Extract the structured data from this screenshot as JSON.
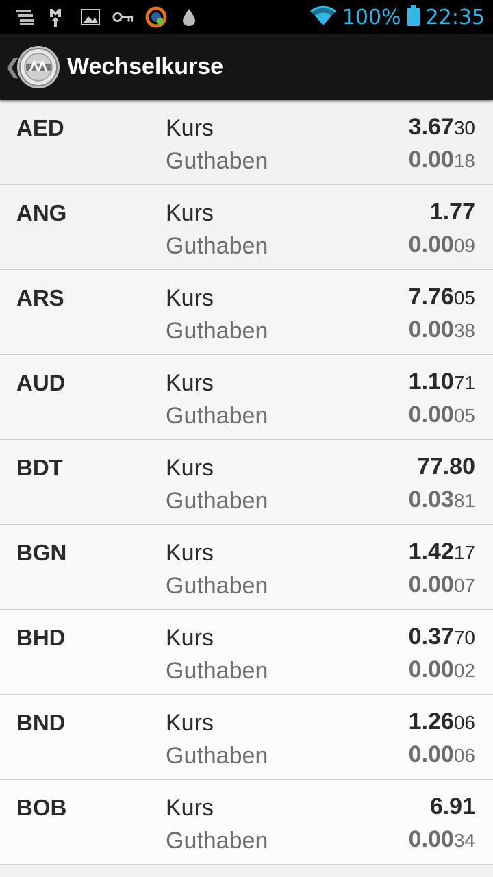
{
  "status_bar": {
    "battery": "100%",
    "time": "22:35",
    "accent_color": "#33b5e5",
    "icons": [
      "notification-stack-icon",
      "gmail-icon",
      "image-icon",
      "key-icon",
      "avast-icon",
      "drop-icon",
      "wifi-icon",
      "battery-icon"
    ]
  },
  "action_bar": {
    "title": "Wechselkurse",
    "logo": "app-logo"
  },
  "rates": [
    {
      "code": "AED",
      "kurs_label": "Kurs",
      "guthaben_label": "Guthaben",
      "kurs_main": "3.67",
      "kurs_small": "30",
      "guthaben_main": "0.00",
      "guthaben_small": "18"
    },
    {
      "code": "ANG",
      "kurs_label": "Kurs",
      "guthaben_label": "Guthaben",
      "kurs_main": "1.77",
      "kurs_small": "",
      "guthaben_main": "0.00",
      "guthaben_small": "09"
    },
    {
      "code": "ARS",
      "kurs_label": "Kurs",
      "guthaben_label": "Guthaben",
      "kurs_main": "7.76",
      "kurs_small": "05",
      "guthaben_main": "0.00",
      "guthaben_small": "38"
    },
    {
      "code": "AUD",
      "kurs_label": "Kurs",
      "guthaben_label": "Guthaben",
      "kurs_main": "1.10",
      "kurs_small": "71",
      "guthaben_main": "0.00",
      "guthaben_small": "05"
    },
    {
      "code": "BDT",
      "kurs_label": "Kurs",
      "guthaben_label": "Guthaben",
      "kurs_main": "77.80",
      "kurs_small": "",
      "guthaben_main": "0.03",
      "guthaben_small": "81"
    },
    {
      "code": "BGN",
      "kurs_label": "Kurs",
      "guthaben_label": "Guthaben",
      "kurs_main": "1.42",
      "kurs_small": "17",
      "guthaben_main": "0.00",
      "guthaben_small": "07"
    },
    {
      "code": "BHD",
      "kurs_label": "Kurs",
      "guthaben_label": "Guthaben",
      "kurs_main": "0.37",
      "kurs_small": "70",
      "guthaben_main": "0.00",
      "guthaben_small": "02"
    },
    {
      "code": "BND",
      "kurs_label": "Kurs",
      "guthaben_label": "Guthaben",
      "kurs_main": "1.26",
      "kurs_small": "06",
      "guthaben_main": "0.00",
      "guthaben_small": "06"
    },
    {
      "code": "BOB",
      "kurs_label": "Kurs",
      "guthaben_label": "Guthaben",
      "kurs_main": "6.91",
      "kurs_small": "",
      "guthaben_main": "0.00",
      "guthaben_small": "34"
    }
  ]
}
